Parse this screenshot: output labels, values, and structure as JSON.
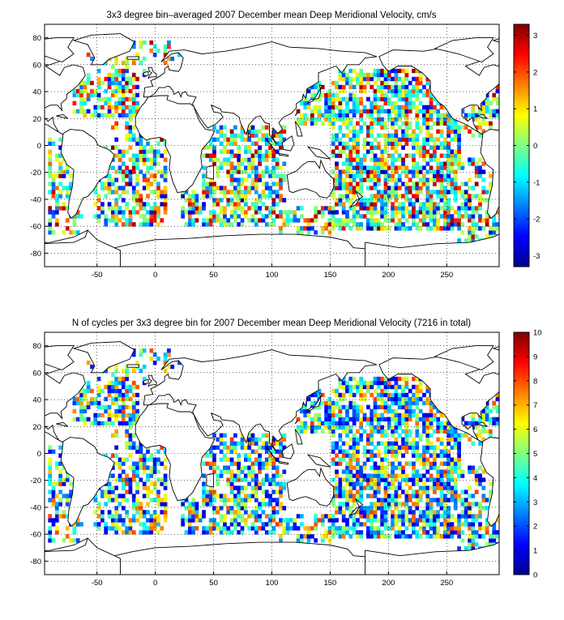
{
  "chart_data": [
    {
      "type": "heatmap",
      "title": "3x3 degree bin–averaged 2007 December mean Deep Meridional Velocity, cm/s",
      "xlabel": "",
      "ylabel": "",
      "xlim": [
        -95,
        295
      ],
      "ylim": [
        -90,
        90
      ],
      "x_ticks": [
        -50,
        0,
        50,
        100,
        150,
        200,
        250
      ],
      "y_ticks": [
        80,
        60,
        40,
        20,
        0,
        -20,
        -40,
        -60,
        -80
      ],
      "grid": "dotted",
      "bin_size_deg": 3,
      "colormap": "jet",
      "colorbar": {
        "range": [
          -3.3,
          3.3
        ],
        "ticks": [
          3,
          2,
          1,
          0,
          -1,
          -2,
          -3
        ],
        "position": "right"
      }
    },
    {
      "type": "heatmap",
      "title": "N of cycles per 3x3 degree bin for 2007 December mean Deep Meridional Velocity (7216 in total)",
      "xlabel": "",
      "ylabel": "",
      "xlim": [
        -95,
        295
      ],
      "ylim": [
        -90,
        90
      ],
      "x_ticks": [
        -50,
        0,
        50,
        100,
        150,
        200,
        250
      ],
      "y_ticks": [
        80,
        60,
        40,
        20,
        0,
        -20,
        -40,
        -60,
        -80
      ],
      "grid": "dotted",
      "bin_size_deg": 3,
      "colormap": "jet",
      "colorbar": {
        "range": [
          0,
          10
        ],
        "ticks": [
          10,
          9,
          8,
          7,
          6,
          5,
          4,
          3,
          2,
          1,
          0
        ],
        "position": "right"
      }
    }
  ]
}
